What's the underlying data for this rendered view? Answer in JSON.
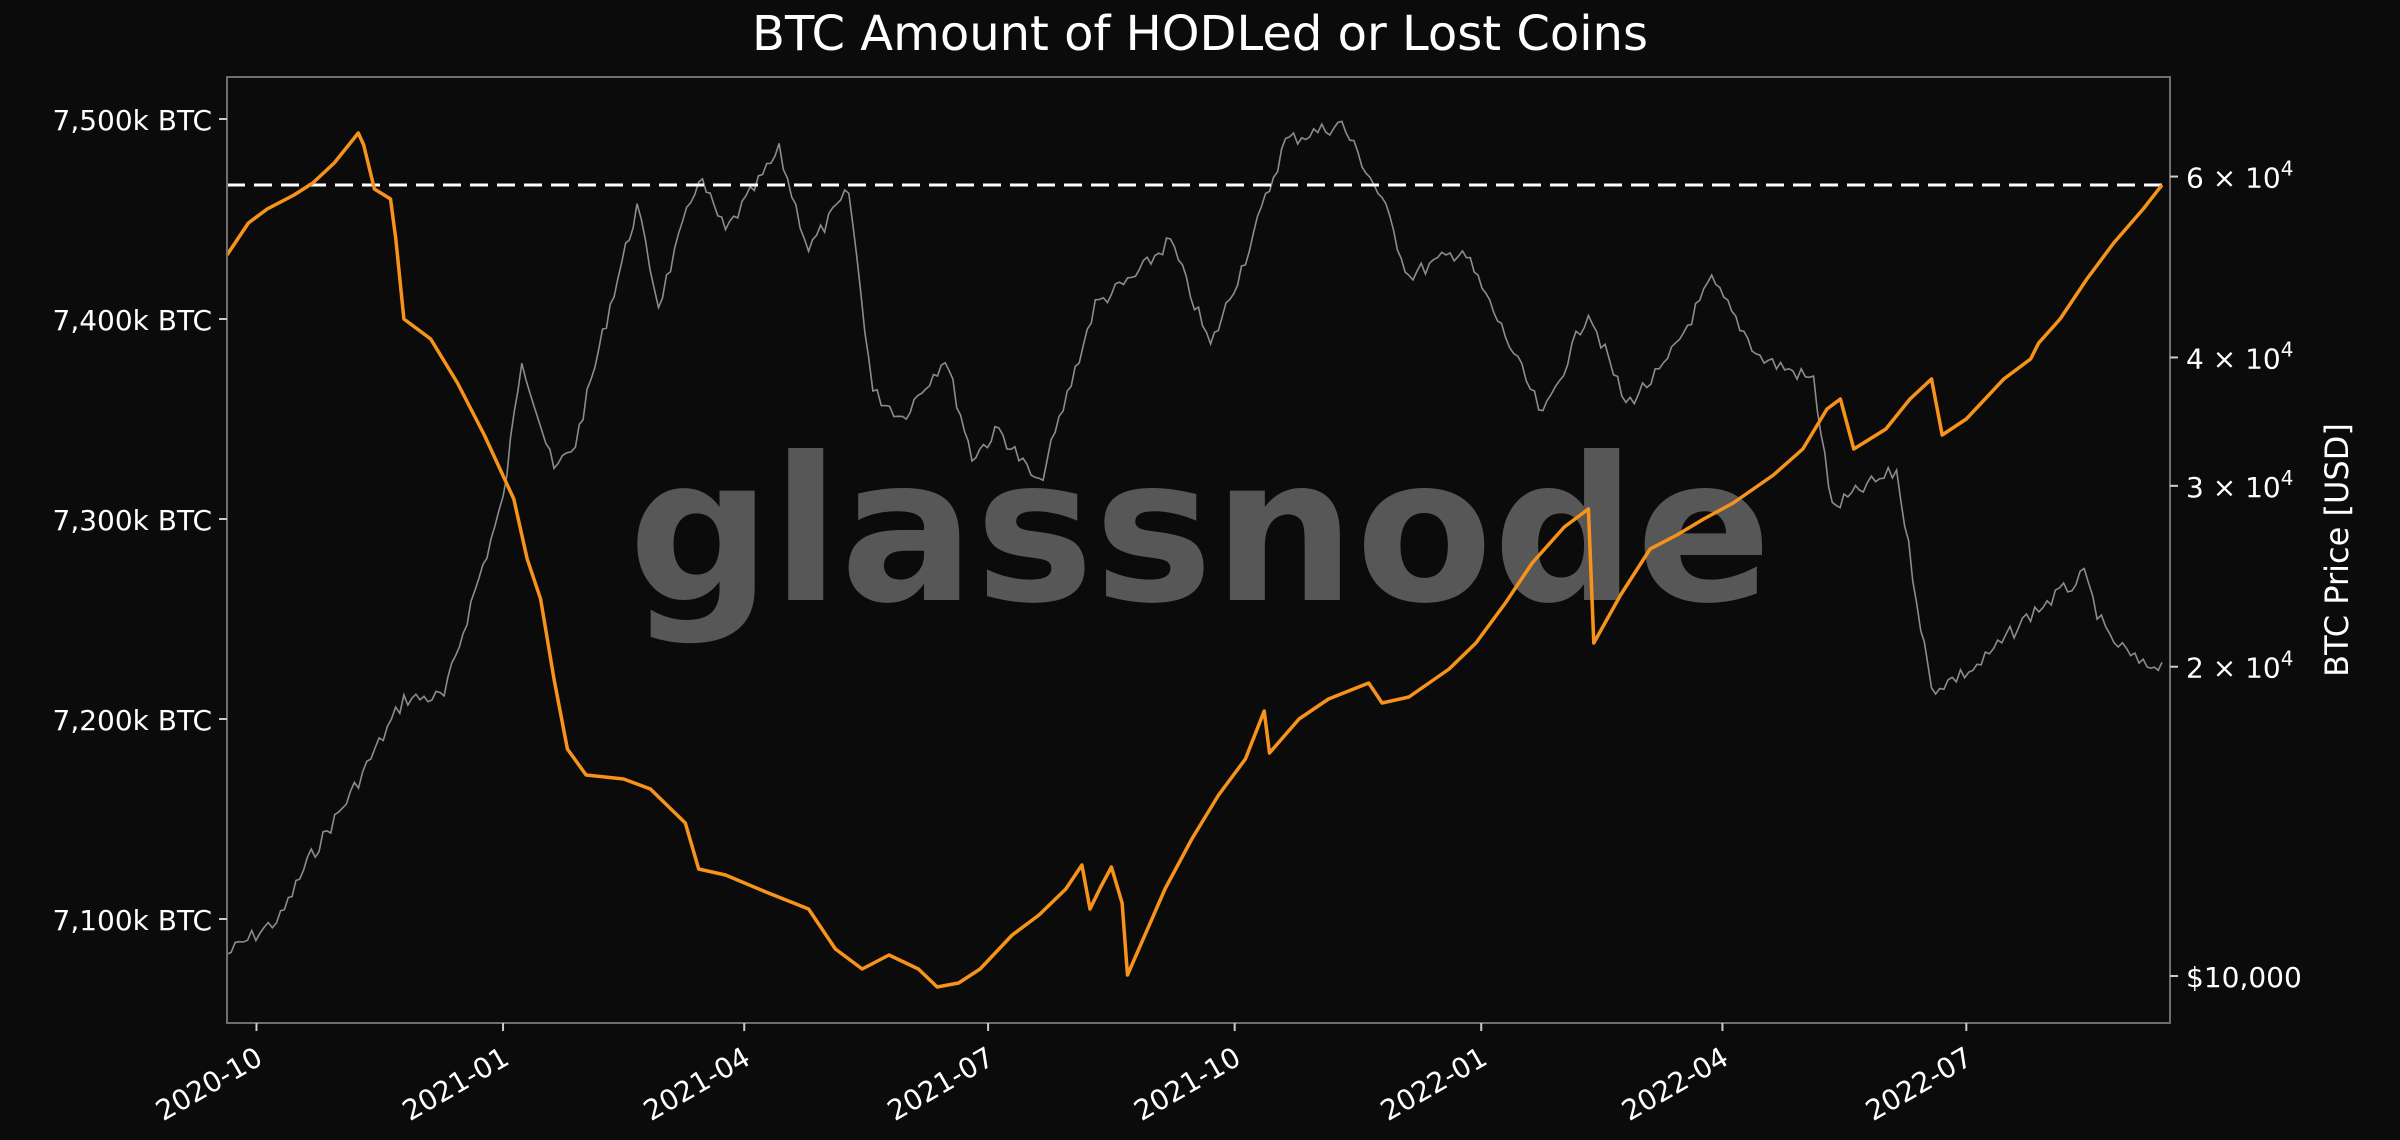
{
  "chart_data": {
    "type": "line",
    "title": "BTC Amount of HODLed or Lost Coins",
    "ylabel_right": "BTC Price [USD]",
    "watermark": "glassnode",
    "x_range": [
      "2020-09-20",
      "2022-09-15"
    ],
    "x_ticks": [
      "2020-10",
      "2021-01",
      "2021-04",
      "2021-07",
      "2021-10",
      "2022-01",
      "2022-04",
      "2022-07"
    ],
    "y_left": {
      "range": [
        7048,
        7521
      ],
      "ticks": [
        {
          "value": 7100,
          "label": "7,100k BTC"
        },
        {
          "value": 7200,
          "label": "7,200k BTC"
        },
        {
          "value": 7300,
          "label": "7,300k BTC"
        },
        {
          "value": 7400,
          "label": "7,400k BTC"
        },
        {
          "value": 7500,
          "label": "7,500k BTC"
        }
      ]
    },
    "y_right": {
      "scale": "log",
      "range": [
        9000,
        75000
      ],
      "ticks": [
        {
          "value": 10000,
          "label": "$10,000"
        },
        {
          "value": 20000,
          "mantissa": "2",
          "base": "10",
          "exp": "4"
        },
        {
          "value": 30000,
          "mantissa": "3",
          "base": "10",
          "exp": "4"
        },
        {
          "value": 40000,
          "mantissa": "4",
          "base": "10",
          "exp": "4"
        },
        {
          "value": 60000,
          "mantissa": "6",
          "base": "10",
          "exp": "4"
        }
      ]
    },
    "reference_line": {
      "axis": "left",
      "value": 7467,
      "style": "dashed",
      "color": "#ffffff"
    },
    "series": [
      {
        "axis": "left",
        "color": "#f7931a",
        "points": [
          [
            "2020-09-20",
            7432
          ],
          [
            "2020-09-28",
            7448
          ],
          [
            "2020-10-05",
            7455
          ],
          [
            "2020-10-15",
            7462
          ],
          [
            "2020-10-22",
            7468
          ],
          [
            "2020-10-30",
            7478
          ],
          [
            "2020-11-05",
            7488
          ],
          [
            "2020-11-08",
            7493
          ],
          [
            "2020-11-10",
            7487
          ],
          [
            "2020-11-14",
            7465
          ],
          [
            "2020-11-20",
            7460
          ],
          [
            "2020-11-22",
            7440
          ],
          [
            "2020-11-25",
            7400
          ],
          [
            "2020-12-05",
            7390
          ],
          [
            "2020-12-15",
            7368
          ],
          [
            "2020-12-25",
            7342
          ],
          [
            "2021-01-05",
            7310
          ],
          [
            "2021-01-10",
            7280
          ],
          [
            "2021-01-15",
            7260
          ],
          [
            "2021-01-20",
            7220
          ],
          [
            "2021-01-25",
            7185
          ],
          [
            "2021-02-01",
            7172
          ],
          [
            "2021-02-15",
            7170
          ],
          [
            "2021-02-25",
            7165
          ],
          [
            "2021-03-10",
            7148
          ],
          [
            "2021-03-15",
            7125
          ],
          [
            "2021-03-25",
            7122
          ],
          [
            "2021-04-10",
            7113
          ],
          [
            "2021-04-25",
            7105
          ],
          [
            "2021-05-05",
            7085
          ],
          [
            "2021-05-15",
            7075
          ],
          [
            "2021-05-25",
            7082
          ],
          [
            "2021-06-05",
            7075
          ],
          [
            "2021-06-12",
            7066
          ],
          [
            "2021-06-20",
            7068
          ],
          [
            "2021-06-28",
            7075
          ],
          [
            "2021-07-10",
            7092
          ],
          [
            "2021-07-20",
            7102
          ],
          [
            "2021-07-30",
            7115
          ],
          [
            "2021-08-05",
            7127
          ],
          [
            "2021-08-08",
            7105
          ],
          [
            "2021-08-12",
            7116
          ],
          [
            "2021-08-16",
            7126
          ],
          [
            "2021-08-20",
            7108
          ],
          [
            "2021-08-22",
            7072
          ],
          [
            "2021-09-05",
            7115
          ],
          [
            "2021-09-15",
            7140
          ],
          [
            "2021-09-25",
            7162
          ],
          [
            "2021-10-05",
            7180
          ],
          [
            "2021-10-12",
            7204
          ],
          [
            "2021-10-14",
            7183
          ],
          [
            "2021-10-25",
            7200
          ],
          [
            "2021-11-05",
            7210
          ],
          [
            "2021-11-20",
            7218
          ],
          [
            "2021-11-25",
            7208
          ],
          [
            "2021-12-05",
            7211
          ],
          [
            "2021-12-20",
            7225
          ],
          [
            "2021-12-30",
            7238
          ],
          [
            "2022-01-10",
            7258
          ],
          [
            "2022-01-20",
            7278
          ],
          [
            "2022-02-01",
            7296
          ],
          [
            "2022-02-10",
            7305
          ],
          [
            "2022-02-12",
            7238
          ],
          [
            "2022-02-22",
            7262
          ],
          [
            "2022-03-05",
            7285
          ],
          [
            "2022-03-15",
            7292
          ],
          [
            "2022-03-25",
            7300
          ],
          [
            "2022-04-05",
            7308
          ],
          [
            "2022-04-20",
            7322
          ],
          [
            "2022-05-01",
            7335
          ],
          [
            "2022-05-10",
            7355
          ],
          [
            "2022-05-15",
            7360
          ],
          [
            "2022-05-20",
            7335
          ],
          [
            "2022-06-01",
            7345
          ],
          [
            "2022-06-10",
            7360
          ],
          [
            "2022-06-18",
            7370
          ],
          [
            "2022-06-22",
            7342
          ],
          [
            "2022-07-01",
            7350
          ],
          [
            "2022-07-15",
            7370
          ],
          [
            "2022-07-25",
            7380
          ],
          [
            "2022-07-28",
            7388
          ],
          [
            "2022-08-05",
            7400
          ],
          [
            "2022-08-15",
            7420
          ],
          [
            "2022-08-25",
            7438
          ],
          [
            "2022-09-05",
            7455
          ],
          [
            "2022-09-12",
            7467
          ]
        ]
      },
      {
        "axis": "right",
        "color": "#8c8c8c",
        "points": [
          [
            "2020-09-20",
            10500
          ],
          [
            "2020-10-10",
            11400
          ],
          [
            "2020-10-20",
            12900
          ],
          [
            "2020-11-05",
            15000
          ],
          [
            "2020-11-25",
            18600
          ],
          [
            "2020-12-10",
            18700
          ],
          [
            "2020-12-20",
            23000
          ],
          [
            "2021-01-01",
            29000
          ],
          [
            "2021-01-08",
            40000
          ],
          [
            "2021-01-20",
            31000
          ],
          [
            "2021-01-28",
            33000
          ],
          [
            "2021-02-10",
            45000
          ],
          [
            "2021-02-20",
            56000
          ],
          [
            "2021-02-28",
            45000
          ],
          [
            "2021-03-15",
            60000
          ],
          [
            "2021-03-25",
            53000
          ],
          [
            "2021-04-14",
            63500
          ],
          [
            "2021-04-25",
            51000
          ],
          [
            "2021-05-10",
            58000
          ],
          [
            "2021-05-19",
            37000
          ],
          [
            "2021-05-30",
            35000
          ],
          [
            "2021-06-15",
            40000
          ],
          [
            "2021-06-25",
            32000
          ],
          [
            "2021-07-05",
            34000
          ],
          [
            "2021-07-20",
            30000
          ],
          [
            "2021-08-10",
            45000
          ],
          [
            "2021-08-25",
            48000
          ],
          [
            "2021-09-07",
            52000
          ],
          [
            "2021-09-22",
            41000
          ],
          [
            "2021-10-05",
            50000
          ],
          [
            "2021-10-20",
            65000
          ],
          [
            "2021-11-10",
            67500
          ],
          [
            "2021-11-25",
            57000
          ],
          [
            "2021-12-05",
            48000
          ],
          [
            "2021-12-25",
            51000
          ],
          [
            "2022-01-10",
            42000
          ],
          [
            "2022-01-24",
            35000
          ],
          [
            "2022-02-10",
            44500
          ],
          [
            "2022-02-24",
            36000
          ],
          [
            "2022-03-10",
            39000
          ],
          [
            "2022-03-28",
            47500
          ],
          [
            "2022-04-15",
            40000
          ],
          [
            "2022-05-05",
            38000
          ],
          [
            "2022-05-12",
            28500
          ],
          [
            "2022-05-25",
            30000
          ],
          [
            "2022-06-05",
            31000
          ],
          [
            "2022-06-14",
            22000
          ],
          [
            "2022-06-18",
            19000
          ],
          [
            "2022-07-05",
            20000
          ],
          [
            "2022-07-25",
            22500
          ],
          [
            "2022-08-14",
            24500
          ],
          [
            "2022-08-22",
            21500
          ],
          [
            "2022-09-05",
            20000
          ],
          [
            "2022-09-12",
            20200
          ]
        ]
      }
    ]
  }
}
